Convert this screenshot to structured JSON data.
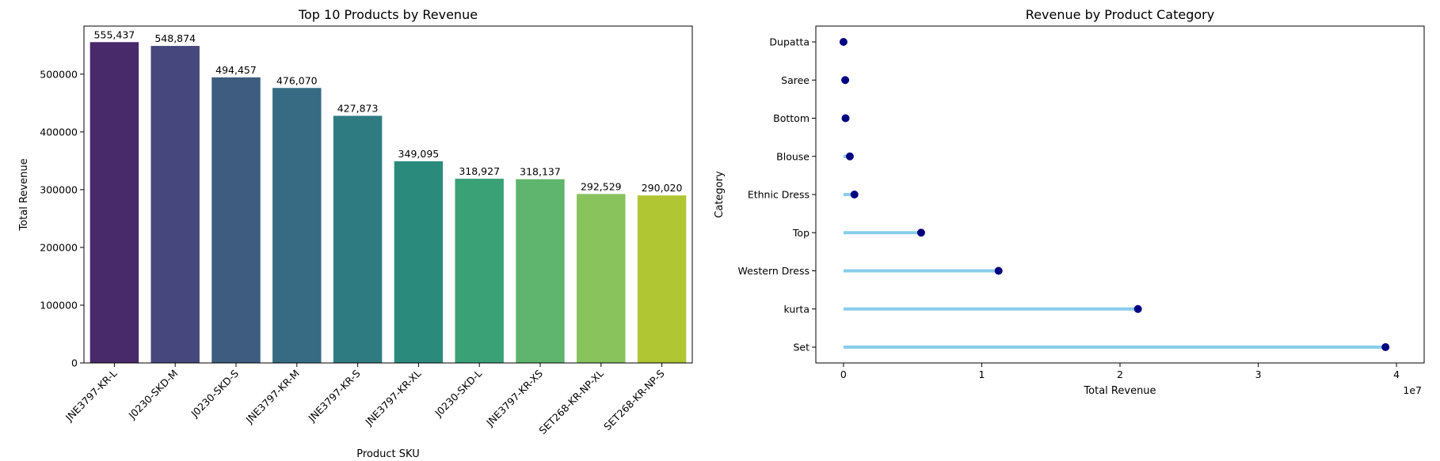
{
  "chart_data": [
    {
      "type": "bar",
      "title": "Top 10 Products by Revenue",
      "xlabel": "Product SKU",
      "ylabel": "Total Revenue",
      "categories": [
        "JNE3797-KR-L",
        "J0230-SKD-M",
        "J0230-SKD-S",
        "JNE3797-KR-M",
        "JNE3797-KR-S",
        "JNE3797-KR-XL",
        "J0230-SKD-L",
        "JNE3797-KR-XS",
        "SET268-KR-NP-XL",
        "SET268-KR-NP-S"
      ],
      "values": [
        555437,
        548874,
        494457,
        476070,
        427873,
        349095,
        318927,
        318137,
        292529,
        290020
      ],
      "data_labels": [
        "555,437",
        "548,874",
        "494,457",
        "476,070",
        "427,873",
        "349,095",
        "318,927",
        "318,137",
        "292,529",
        "290,020"
      ],
      "colors": [
        "#482a6a",
        "#46477c",
        "#3e5b80",
        "#366b83",
        "#2f7b82",
        "#2a8b7d",
        "#3aa177",
        "#5fb56d",
        "#88c35c",
        "#b0c633"
      ],
      "ylim": [
        0,
        583200
      ],
      "yticks": [
        0,
        100000,
        200000,
        300000,
        400000,
        500000
      ],
      "ytick_labels": [
        "0",
        "100000",
        "200000",
        "300000",
        "400000",
        "500000"
      ],
      "grid": false
    },
    {
      "type": "lollipop",
      "title": "Revenue by Product Category",
      "xlabel": "Total Revenue",
      "ylabel": "Category",
      "offset_text": "1e7",
      "categories": [
        "Dupatta",
        "Saree",
        "Bottom",
        "Blouse",
        "Ethnic Dress",
        "Top",
        "Western Dress",
        "kurta",
        "Set"
      ],
      "values": [
        915,
        123934,
        150667,
        458408,
        791218,
        5613533,
        11216072,
        21299547,
        39204124
      ],
      "xlim": [
        -2000000,
        42000000
      ],
      "xticks": [
        0,
        10000000,
        20000000,
        30000000,
        40000000
      ],
      "xtick_labels": [
        "0",
        "1",
        "2",
        "3",
        "4"
      ],
      "stem_color": "#87ceeb",
      "marker_color": "#000080",
      "grid": false
    }
  ]
}
